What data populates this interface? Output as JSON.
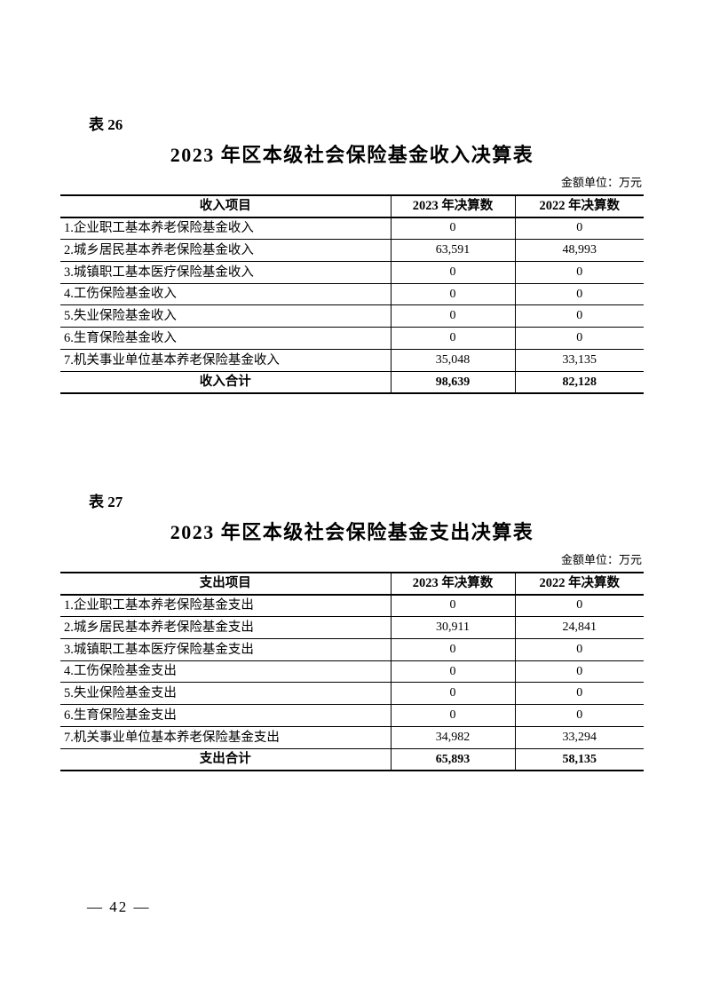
{
  "document": {
    "page_number_display": "— 42 —"
  },
  "tables": [
    {
      "label": "表 26",
      "title": "2023 年区本级社会保险基金收入决算表",
      "unit_note": "金额单位：万元",
      "columns": [
        "收入项目",
        "2023 年决算数",
        "2022 年决算数"
      ],
      "rows": [
        {
          "item": "1.企业职工基本养老保险基金收入",
          "v2023": "0",
          "v2022": "0"
        },
        {
          "item": "2.城乡居民基本养老保险基金收入",
          "v2023": "63,591",
          "v2022": "48,993"
        },
        {
          "item": "3.城镇职工基本医疗保险基金收入",
          "v2023": "0",
          "v2022": "0"
        },
        {
          "item": "4.工伤保险基金收入",
          "v2023": "0",
          "v2022": "0"
        },
        {
          "item": "5.失业保险基金收入",
          "v2023": "0",
          "v2022": "0"
        },
        {
          "item": "6.生育保险基金收入",
          "v2023": "0",
          "v2022": "0"
        },
        {
          "item": "7.机关事业单位基本养老保险基金收入",
          "v2023": "35,048",
          "v2022": "33,135"
        }
      ],
      "total": {
        "item": "收入合计",
        "v2023": "98,639",
        "v2022": "82,128"
      }
    },
    {
      "label": "表 27",
      "title": "2023 年区本级社会保险基金支出决算表",
      "unit_note": "金额单位：万元",
      "columns": [
        "支出项目",
        "2023 年决算数",
        "2022 年决算数"
      ],
      "rows": [
        {
          "item": "1.企业职工基本养老保险基金支出",
          "v2023": "0",
          "v2022": "0"
        },
        {
          "item": "2.城乡居民基本养老保险基金支出",
          "v2023": "30,911",
          "v2022": "24,841"
        },
        {
          "item": "3.城镇职工基本医疗保险基金支出",
          "v2023": "0",
          "v2022": "0"
        },
        {
          "item": "4.工伤保险基金支出",
          "v2023": "0",
          "v2022": "0"
        },
        {
          "item": "5.失业保险基金支出",
          "v2023": "0",
          "v2022": "0"
        },
        {
          "item": "6.生育保险基金支出",
          "v2023": "0",
          "v2022": "0"
        },
        {
          "item": "7.机关事业单位基本养老保险基金支出",
          "v2023": "34,982",
          "v2022": "33,294"
        }
      ],
      "total": {
        "item": "支出合计",
        "v2023": "65,893",
        "v2022": "58,135"
      }
    }
  ]
}
